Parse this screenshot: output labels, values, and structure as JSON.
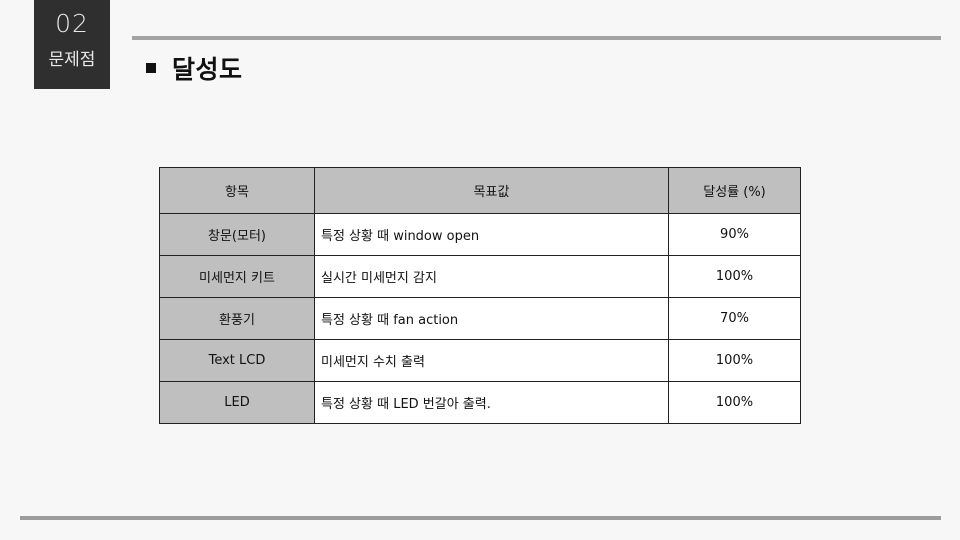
{
  "section": {
    "number": "02",
    "label": "문제점"
  },
  "page_title": "달성도",
  "table": {
    "headers": {
      "item": "항목",
      "target": "목표값",
      "rate": "달성률 (%)"
    },
    "rows": [
      {
        "item": "창문(모터)",
        "target": "특정 상황 때 window open",
        "rate": "90%"
      },
      {
        "item": "미세먼지 키트",
        "target": "실시간 미세먼지 감지",
        "rate": "100%"
      },
      {
        "item": "환풍기",
        "target": "특정 상황 때 fan action",
        "rate": "70%"
      },
      {
        "item": "Text LCD",
        "target": "미세먼지 수치 출력",
        "rate": "100%"
      },
      {
        "item": "LED",
        "target": "특정 상황 때 LED 번갈아 출력.",
        "rate": "100%"
      }
    ]
  },
  "colors": {
    "section_box": "#2f2f2f",
    "header_fill": "#bfbfbf",
    "rule": "#a3a3a3"
  }
}
